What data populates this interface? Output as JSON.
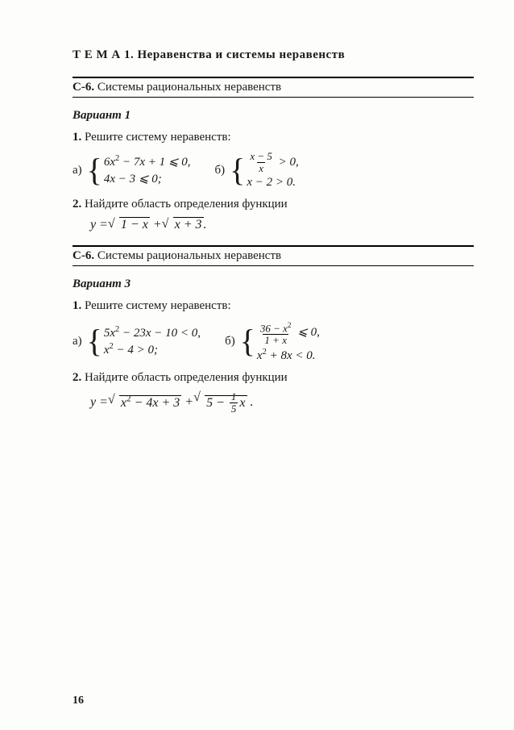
{
  "topic_label": "Т Е М А 1.",
  "topic_title": "Неравенства и системы неравенств",
  "section_code": "С-6.",
  "section_title": "Системы рациональных неравенств",
  "variant1_label": "Вариант 1",
  "variant3_label": "Вариант 3",
  "task1_num": "1.",
  "task1_text": "Решите систему неравенств:",
  "task2_num": "2.",
  "task2_text": "Найдите область определения функции",
  "label_a": "а)",
  "label_b": "б)",
  "v1": {
    "a1": "6x² − 7x + 1 ⩽ 0,",
    "a2": "4x − 3 ⩽ 0;",
    "b1_num": "x − 5",
    "b1_den": "x",
    "b1_tail": " > 0,",
    "b2": "x − 2 > 0.",
    "f_lhs": "y = ",
    "f_r1": "1 − x",
    "f_plus": " + ",
    "f_r2": "x + 3",
    "f_end": "."
  },
  "v3": {
    "a1": "5x² − 23x − 10 < 0,",
    "a2": "x² − 4 > 0;",
    "b1_num": "36 − x²",
    "b1_den": "1 + x",
    "b1_tail": " ⩽ 0,",
    "b2": "x² + 8x < 0.",
    "f_lhs": "y = ",
    "f_r1": "x² − 4x + 3",
    "f_plus": " + ",
    "f_r2a": "5 − ",
    "f_r2_fn": "1",
    "f_r2_fd": "5",
    "f_r2b": "x",
    "f_end": " ."
  },
  "page_number": "16"
}
